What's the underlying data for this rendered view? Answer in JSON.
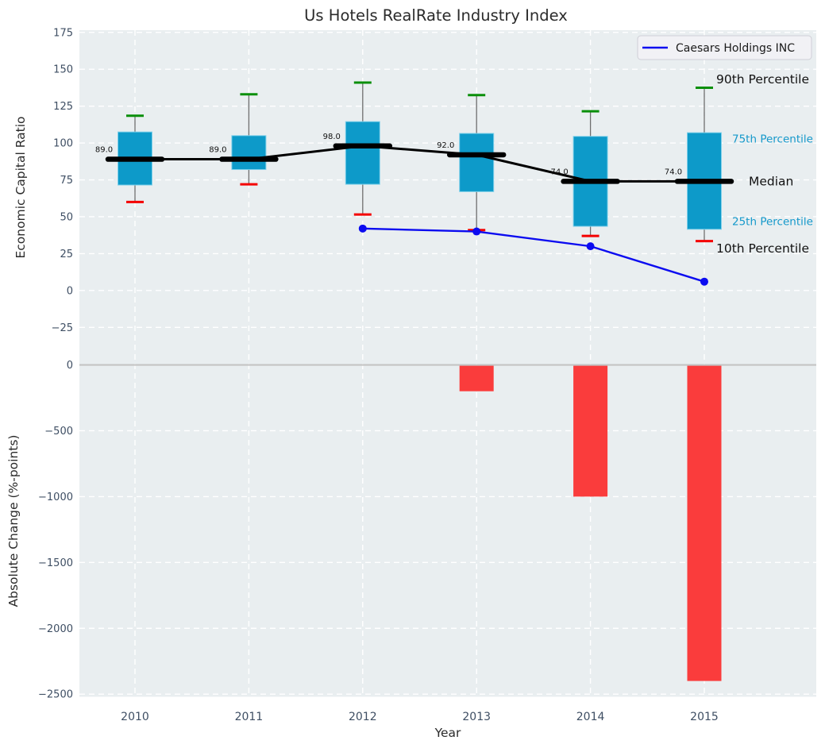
{
  "title": "Us Hotels RealRate Industry Index",
  "legend": {
    "label": "Caesars Holdings INC"
  },
  "axes": {
    "top_ylabel": "Economic Capital Ratio",
    "bottom_ylabel": "Absolute Change (%-points)",
    "xlabel": "Year"
  },
  "colors": {
    "plot_bg": "#e9eef0",
    "grid": "#ffffff",
    "box_fill": "#0d9ac9",
    "box_edge": "#7fd0ea",
    "median": "#000000",
    "whisker": "#6e6e6e",
    "cap_high": "#0a8f0a",
    "cap_low": "#f40000",
    "company_line": "#0b0bf0",
    "bar_fill": "#fa3c3c",
    "zero_line": "#c4c4c4",
    "tick_text": "#3e4e63",
    "label_text": "#2b2b2b",
    "accent_text": "#1599cb",
    "legend_bg": "#f1f1f5",
    "legend_border": "#cfcfd7"
  },
  "chart_data": [
    {
      "type": "boxplot",
      "panel": "top",
      "title": "Us Hotels RealRate Industry Index",
      "ylabel": "Economic Capital Ratio",
      "categories": [
        "2010",
        "2011",
        "2012",
        "2013",
        "2014",
        "2015"
      ],
      "boxes": {
        "p10": [
          60,
          72,
          51.5,
          41,
          37,
          33.5
        ],
        "p25": [
          71.5,
          82,
          72,
          67,
          43.5,
          41.5
        ],
        "median": [
          89,
          89,
          98,
          92,
          74,
          74
        ],
        "p75": [
          107.5,
          105,
          114.5,
          106.5,
          104.5,
          107
        ],
        "p90": [
          118.5,
          133,
          141,
          132.5,
          121.5,
          137.5
        ]
      },
      "median_labels": [
        "89.0",
        "89.0",
        "98.0",
        "92.0",
        "74.0",
        "74.0"
      ],
      "series": [
        {
          "name": "Caesars Holdings INC",
          "type": "line",
          "values": [
            null,
            null,
            42,
            40,
            30,
            6
          ]
        }
      ],
      "yticks": [
        175,
        150,
        125,
        100,
        75,
        50,
        25,
        0,
        -25
      ],
      "ylim": [
        -37.5,
        176.5
      ],
      "grid": true,
      "legend_position": "upper right",
      "annotations": [
        {
          "label": "90th Percentile",
          "v": 143,
          "tone": "dark"
        },
        {
          "label": "75th Percentile",
          "v": 103,
          "tone": "accent"
        },
        {
          "label": "Median",
          "v": 74,
          "tone": "dark"
        },
        {
          "label": "25th Percentile",
          "v": 47,
          "tone": "accent"
        },
        {
          "label": "10th Percentile",
          "v": 28.5,
          "tone": "dark"
        }
      ]
    },
    {
      "type": "bar",
      "panel": "bottom",
      "ylabel": "Absolute Change (%-points)",
      "xlabel": "Year",
      "categories": [
        "2010",
        "2011",
        "2012",
        "2013",
        "2014",
        "2015"
      ],
      "values": [
        null,
        null,
        null,
        -200,
        -1000,
        -2400
      ],
      "yticks": [
        0,
        -500,
        -1000,
        -1500,
        -2000,
        -2500
      ],
      "ylim": [
        -2520,
        145
      ],
      "grid": true
    }
  ]
}
